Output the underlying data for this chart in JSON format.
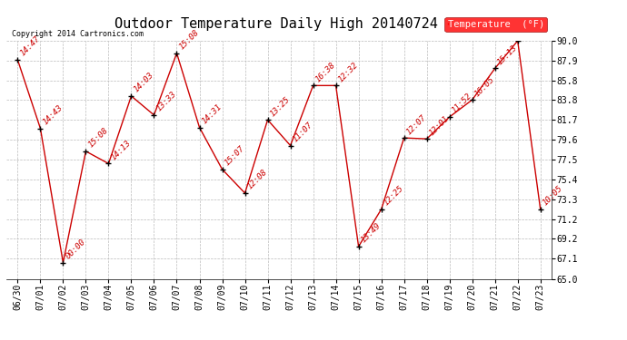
{
  "title": "Outdoor Temperature Daily High 20140724",
  "copyright": "Copyright 2014 Cartronics.com",
  "legend_label": "Temperature  (°F)",
  "x_labels": [
    "06/30",
    "07/01",
    "07/02",
    "07/03",
    "07/04",
    "07/05",
    "07/06",
    "07/07",
    "07/08",
    "07/09",
    "07/10",
    "07/11",
    "07/12",
    "07/13",
    "07/14",
    "07/15",
    "07/16",
    "07/17",
    "07/18",
    "07/19",
    "07/20",
    "07/21",
    "07/22",
    "07/23"
  ],
  "y_values": [
    88.0,
    80.8,
    66.7,
    78.4,
    77.1,
    84.2,
    82.2,
    88.7,
    80.9,
    76.5,
    74.0,
    81.7,
    79.0,
    85.3,
    85.3,
    68.4,
    72.3,
    79.8,
    79.7,
    82.0,
    83.8,
    87.1,
    90.0,
    72.3
  ],
  "time_labels": [
    "14:47",
    "14:43",
    "00:00",
    "15:08",
    "14:13",
    "14:03",
    "13:33",
    "15:08",
    "14:31",
    "15:07",
    "12:08",
    "13:25",
    "11:07",
    "16:38",
    "12:32",
    "13:49",
    "12:25",
    "12:07",
    "12:01",
    "11:52",
    "16:05",
    "15:13",
    "",
    "10:05"
  ],
  "line_color": "#cc0000",
  "marker_color": "#000000",
  "bg_color": "#ffffff",
  "grid_color": "#bbbbbb",
  "ylim": [
    65.0,
    90.0
  ],
  "ytick_values": [
    65.0,
    67.1,
    69.2,
    71.2,
    73.3,
    75.4,
    77.5,
    79.6,
    81.7,
    83.8,
    85.8,
    87.9,
    90.0
  ],
  "title_fontsize": 11,
  "tick_fontsize": 7,
  "label_fontsize": 6.5
}
